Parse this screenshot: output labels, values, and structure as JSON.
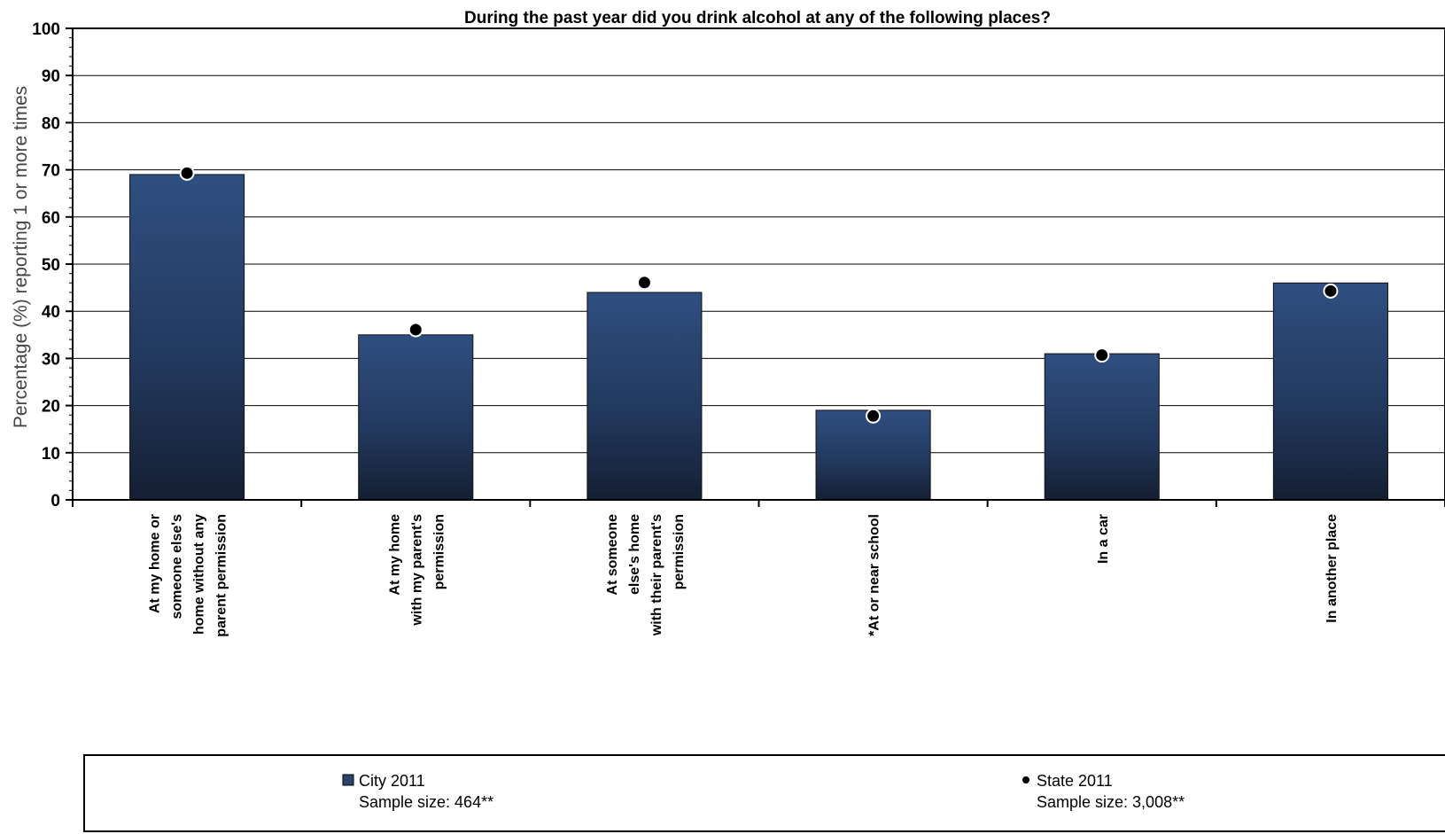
{
  "chart_data": {
    "type": "bar",
    "title": "During the past year did you drink alcohol at any of the following places?",
    "ylabel": "Percentage (%) reporting 1 or more times",
    "ylim": [
      0,
      100
    ],
    "yticks": [
      0,
      10,
      20,
      30,
      40,
      50,
      60,
      70,
      80,
      90,
      100
    ],
    "grid": true,
    "legend_position": "bottom",
    "categories": [
      [
        "At my home or",
        "someone else's",
        "home without any",
        "parent permission"
      ],
      [
        "At my home",
        "with my parent's",
        "permission"
      ],
      [
        "At someone",
        "else's home",
        "with their parent's",
        "permission"
      ],
      [
        "*At or near school"
      ],
      [
        "In a car"
      ],
      [
        "In another place"
      ]
    ],
    "series": [
      {
        "name": "City 2011",
        "sample": "Sample size: 464**",
        "type": "bar",
        "color": "#2b446e",
        "values": [
          69,
          35,
          44,
          19,
          31,
          46
        ]
      },
      {
        "name": "State 2011",
        "sample": "Sample size: 3,008**",
        "type": "marker",
        "color": "#000000",
        "values": [
          69.3,
          36.1,
          46.1,
          17.8,
          30.7,
          44.3
        ]
      }
    ]
  }
}
